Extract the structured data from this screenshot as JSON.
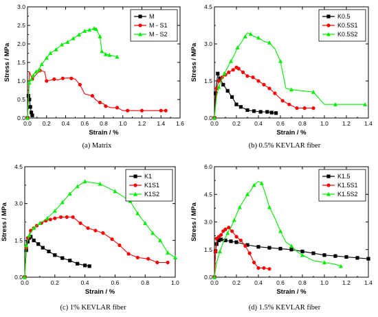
{
  "chart_data": [
    {
      "type": "line",
      "caption": "(a) Matrix",
      "xlabel": "Strain / %",
      "ylabel": "Stress / MPa",
      "xlim": [
        0,
        1.6
      ],
      "ylim": [
        0,
        3.0
      ],
      "xticks": [
        "0.0",
        "0.2",
        "0.4",
        "0.6",
        "0.8",
        "1.0",
        "1.2",
        "1.4",
        "1.6"
      ],
      "yticks": [
        "0.0",
        "0.5",
        "1.0",
        "1.5",
        "2.0",
        "2.5",
        "3.0"
      ],
      "legend_position": "top-right",
      "series": [
        {
          "name": "M",
          "color": "#000000",
          "marker": "square",
          "x": [
            0,
            0.01,
            0.02,
            0.03,
            0.04,
            0.05
          ],
          "y": [
            0,
            0.6,
            0.5,
            0.3,
            0.15,
            0.07
          ]
        },
        {
          "name": "M - S1",
          "color": "#ff0000",
          "marker": "circle",
          "x": [
            0,
            0.02,
            0.05,
            0.1,
            0.13,
            0.18,
            0.2,
            0.24,
            0.28,
            0.32,
            0.37,
            0.42,
            0.46,
            0.5,
            0.55,
            0.6,
            0.68,
            0.72,
            0.76,
            0.8,
            0.82,
            0.88,
            0.94,
            1.0,
            1.05,
            1.1,
            1.2,
            1.3,
            1.4,
            1.45
          ],
          "y": [
            0,
            1.25,
            1.05,
            1.2,
            1.28,
            1.25,
            1.0,
            1.02,
            1.05,
            1.03,
            1.07,
            1.08,
            1.07,
            1.05,
            0.9,
            0.65,
            0.6,
            0.48,
            0.42,
            0.38,
            0.32,
            0.28,
            0.28,
            0.2,
            0.2,
            0.2,
            0.2,
            0.2,
            0.2,
            0.2
          ]
        },
        {
          "name": "M - S2",
          "color": "#00ee00",
          "marker": "triangle",
          "x": [
            0,
            0.02,
            0.04,
            0.06,
            0.09,
            0.12,
            0.15,
            0.2,
            0.24,
            0.3,
            0.36,
            0.42,
            0.48,
            0.54,
            0.6,
            0.65,
            0.7,
            0.72,
            0.76,
            0.78,
            0.82,
            0.86,
            0.94
          ],
          "y": [
            0,
            0.95,
            1.05,
            1.15,
            1.25,
            1.3,
            1.45,
            1.62,
            1.75,
            1.85,
            1.98,
            2.05,
            2.15,
            2.25,
            2.35,
            2.38,
            2.42,
            2.4,
            2.2,
            1.8,
            1.72,
            1.7,
            1.65
          ]
        }
      ]
    },
    {
      "type": "line",
      "caption": "(b) 0.5% KEVLAR fiber",
      "xlabel": "Strain / %",
      "ylabel": "Stress / MPa",
      "xlim": [
        0,
        1.4
      ],
      "ylim": [
        0,
        4.5
      ],
      "xticks": [
        "0.0",
        "0.2",
        "0.4",
        "0.6",
        "0.8",
        "1.0",
        "1.2",
        "1.4"
      ],
      "yticks": [
        "0.0",
        "1.5",
        "3.0",
        "4.5"
      ],
      "legend_position": "top-right",
      "series": [
        {
          "name": "K0.5",
          "color": "#000000",
          "marker": "square",
          "x": [
            0,
            0.01,
            0.03,
            0.05,
            0.08,
            0.12,
            0.16,
            0.2,
            0.24,
            0.3,
            0.36,
            0.42,
            0.48,
            0.52,
            0.56
          ],
          "y": [
            0,
            1.0,
            1.8,
            1.6,
            1.35,
            1.1,
            0.85,
            0.55,
            0.45,
            0.32,
            0.28,
            0.25,
            0.25,
            0.22,
            0.2
          ]
        },
        {
          "name": "K0.5S1",
          "color": "#ff0000",
          "marker": "circle",
          "x": [
            0,
            0.02,
            0.04,
            0.07,
            0.1,
            0.13,
            0.17,
            0.2,
            0.22,
            0.26,
            0.3,
            0.35,
            0.4,
            0.45,
            0.5,
            0.55,
            0.62,
            0.68,
            0.75,
            0.82,
            0.9
          ],
          "y": [
            0,
            1.2,
            1.5,
            1.65,
            1.75,
            1.85,
            1.95,
            2.05,
            2.0,
            1.85,
            1.7,
            1.65,
            1.5,
            1.35,
            1.2,
            1.0,
            0.7,
            0.55,
            0.4,
            0.4,
            0.4
          ]
        },
        {
          "name": "K0.5S2",
          "color": "#00ee00",
          "marker": "triangle",
          "x": [
            0,
            0.02,
            0.04,
            0.06,
            0.09,
            0.12,
            0.15,
            0.18,
            0.21,
            0.25,
            0.28,
            0.3,
            0.33,
            0.36,
            0.4,
            0.45,
            0.5,
            0.55,
            0.6,
            0.65,
            0.7,
            0.8,
            0.9,
            1.0,
            1.1,
            1.2,
            1.37
          ],
          "y": [
            0,
            0.9,
            1.25,
            1.5,
            1.8,
            2.05,
            2.3,
            2.55,
            2.85,
            3.1,
            3.3,
            3.45,
            3.4,
            3.3,
            3.25,
            3.1,
            3.05,
            2.8,
            2.3,
            1.2,
            1.15,
            1.1,
            1.05,
            0.55,
            0.55,
            0.55,
            0.55
          ]
        }
      ]
    },
    {
      "type": "line",
      "caption": "(c) 1% KEVLAR fiber",
      "xlabel": "Strain / %",
      "ylabel": "Stress / MPa",
      "xlim": [
        0,
        1.0
      ],
      "ylim": [
        0,
        4.5
      ],
      "xticks": [
        "0.0",
        "0.2",
        "0.4",
        "0.6",
        "0.8",
        "1.0"
      ],
      "yticks": [
        "0.0",
        "1.5",
        "3.0",
        "4.5"
      ],
      "legend_position": "top-right",
      "series": [
        {
          "name": "K1",
          "color": "#000000",
          "marker": "square",
          "x": [
            0,
            0.01,
            0.02,
            0.03,
            0.04,
            0.06,
            0.09,
            0.12,
            0.16,
            0.2,
            0.25,
            0.3,
            0.35,
            0.4,
            0.43
          ],
          "y": [
            0,
            1.1,
            1.45,
            1.6,
            1.65,
            1.5,
            1.35,
            1.2,
            1.05,
            0.9,
            0.78,
            0.68,
            0.55,
            0.48,
            0.45
          ]
        },
        {
          "name": "K1S1",
          "color": "#ff0000",
          "marker": "circle",
          "x": [
            0,
            0.01,
            0.02,
            0.04,
            0.06,
            0.08,
            0.11,
            0.14,
            0.17,
            0.2,
            0.24,
            0.28,
            0.32,
            0.37,
            0.42,
            0.47,
            0.52,
            0.58,
            0.63,
            0.69,
            0.75,
            0.82,
            0.88,
            0.95
          ],
          "y": [
            0,
            1.2,
            1.6,
            1.9,
            2.0,
            2.1,
            2.2,
            2.3,
            2.35,
            2.4,
            2.45,
            2.45,
            2.45,
            2.2,
            2.0,
            1.9,
            1.8,
            1.55,
            1.3,
            0.95,
            0.8,
            0.75,
            0.6,
            0.6
          ]
        },
        {
          "name": "K1S2",
          "color": "#00ee00",
          "marker": "triangle",
          "x": [
            0,
            0.01,
            0.03,
            0.06,
            0.1,
            0.15,
            0.2,
            0.25,
            0.3,
            0.35,
            0.4,
            0.5,
            0.6,
            0.7,
            0.75,
            0.8,
            0.85,
            0.9,
            0.95,
            1.0
          ],
          "y": [
            0,
            1.3,
            1.7,
            2.0,
            2.2,
            2.4,
            2.7,
            3.05,
            3.4,
            3.7,
            3.9,
            3.8,
            3.5,
            3.1,
            2.6,
            2.2,
            1.8,
            1.5,
            1.0,
            0.8
          ]
        }
      ]
    },
    {
      "type": "line",
      "caption": "(d) 1.5% KEVLAR fiber",
      "xlabel": "Strain / %",
      "ylabel": "Stress / MPa",
      "xlim": [
        0,
        1.4
      ],
      "ylim": [
        0,
        6.0
      ],
      "xticks": [
        "0.0",
        "0.2",
        "0.4",
        "0.6",
        "0.8",
        "1.0",
        "1.2",
        "1.4"
      ],
      "yticks": [
        "0.0",
        "1.5",
        "3.0",
        "4.5",
        "6.0"
      ],
      "legend_position": "top-right",
      "series": [
        {
          "name": "K1.5",
          "color": "#000000",
          "marker": "square",
          "x": [
            0,
            0.01,
            0.02,
            0.04,
            0.06,
            0.1,
            0.15,
            0.2,
            0.3,
            0.4,
            0.5,
            0.6,
            0.7,
            0.8,
            0.9,
            1.0,
            1.1,
            1.2,
            1.3,
            1.4
          ],
          "y": [
            0,
            1.4,
            1.8,
            2.0,
            2.05,
            2.0,
            1.95,
            1.9,
            1.75,
            1.65,
            1.6,
            1.55,
            1.5,
            1.4,
            1.3,
            1.2,
            1.15,
            1.1,
            1.05,
            1.0
          ]
        },
        {
          "name": "K1.5S1",
          "color": "#ff0000",
          "marker": "circle",
          "x": [
            0,
            0.01,
            0.02,
            0.04,
            0.06,
            0.08,
            0.1,
            0.13,
            0.16,
            0.2,
            0.24,
            0.28,
            0.32,
            0.36,
            0.4,
            0.45,
            0.5
          ],
          "y": [
            0,
            1.4,
            2.1,
            2.2,
            2.3,
            2.5,
            2.6,
            2.7,
            2.5,
            2.2,
            2.0,
            1.7,
            1.3,
            0.8,
            0.5,
            0.5,
            0.45
          ]
        },
        {
          "name": "K1.5S2",
          "color": "#00ee00",
          "marker": "triangle",
          "x": [
            0,
            0.02,
            0.05,
            0.08,
            0.12,
            0.15,
            0.18,
            0.2,
            0.23,
            0.26,
            0.3,
            0.33,
            0.36,
            0.4,
            0.43,
            0.46,
            0.5,
            0.55,
            0.6,
            0.65,
            0.7,
            0.75,
            0.8,
            0.9,
            1.0,
            1.1,
            1.15
          ],
          "y": [
            0,
            0.8,
            1.4,
            1.9,
            2.4,
            2.7,
            3.1,
            3.4,
            3.8,
            4.1,
            4.5,
            4.7,
            5.0,
            5.2,
            5.1,
            4.6,
            3.8,
            3.2,
            2.5,
            1.9,
            1.7,
            1.4,
            1.2,
            0.9,
            0.8,
            0.7,
            0.6
          ]
        }
      ]
    }
  ]
}
